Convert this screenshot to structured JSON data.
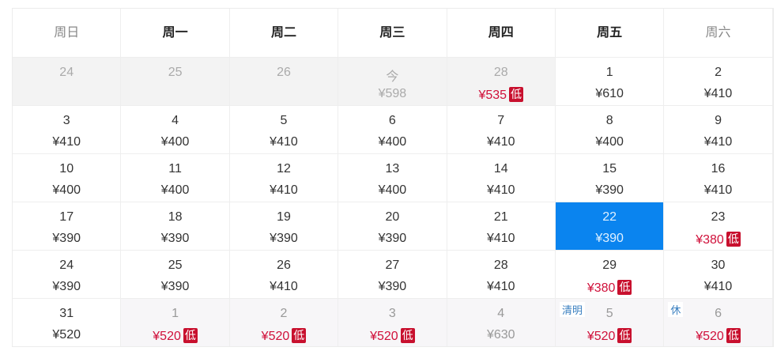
{
  "weekdays": [
    {
      "label": "周日",
      "weekend": true
    },
    {
      "label": "周一"
    },
    {
      "label": "周二"
    },
    {
      "label": "周三"
    },
    {
      "label": "周四"
    },
    {
      "label": "周五"
    },
    {
      "label": "周六",
      "weekend": true
    }
  ],
  "low_badge": "低",
  "colors": {
    "selected": "#0a84ef",
    "low_price": "#d0103a",
    "badge": "#c8102e",
    "holiday_tag": "#3a7fc0"
  },
  "weeks": [
    [
      {
        "day": "24",
        "state": "past"
      },
      {
        "day": "25",
        "state": "past"
      },
      {
        "day": "26",
        "state": "past"
      },
      {
        "day": "今",
        "price": "¥598",
        "state": "past"
      },
      {
        "day": "28",
        "price": "¥535",
        "low": true,
        "state": "past"
      },
      {
        "day": "1",
        "price": "¥610"
      },
      {
        "day": "2",
        "price": "¥410"
      }
    ],
    [
      {
        "day": "3",
        "price": "¥410"
      },
      {
        "day": "4",
        "price": "¥400"
      },
      {
        "day": "5",
        "price": "¥410"
      },
      {
        "day": "6",
        "price": "¥400"
      },
      {
        "day": "7",
        "price": "¥410"
      },
      {
        "day": "8",
        "price": "¥400"
      },
      {
        "day": "9",
        "price": "¥410"
      }
    ],
    [
      {
        "day": "10",
        "price": "¥400"
      },
      {
        "day": "11",
        "price": "¥400"
      },
      {
        "day": "12",
        "price": "¥410"
      },
      {
        "day": "13",
        "price": "¥400"
      },
      {
        "day": "14",
        "price": "¥410"
      },
      {
        "day": "15",
        "price": "¥390"
      },
      {
        "day": "16",
        "price": "¥410"
      }
    ],
    [
      {
        "day": "17",
        "price": "¥390"
      },
      {
        "day": "18",
        "price": "¥390"
      },
      {
        "day": "19",
        "price": "¥390"
      },
      {
        "day": "20",
        "price": "¥390"
      },
      {
        "day": "21",
        "price": "¥410"
      },
      {
        "day": "22",
        "price": "¥390",
        "state": "sel"
      },
      {
        "day": "23",
        "price": "¥380",
        "low": true
      }
    ],
    [
      {
        "day": "24",
        "price": "¥390"
      },
      {
        "day": "25",
        "price": "¥390"
      },
      {
        "day": "26",
        "price": "¥410"
      },
      {
        "day": "27",
        "price": "¥390"
      },
      {
        "day": "28",
        "price": "¥410"
      },
      {
        "day": "29",
        "price": "¥380",
        "low": true
      },
      {
        "day": "30",
        "price": "¥410"
      }
    ],
    [
      {
        "day": "31",
        "price": "¥520"
      },
      {
        "day": "1",
        "price": "¥520",
        "low": true,
        "state": "next"
      },
      {
        "day": "2",
        "price": "¥520",
        "low": true,
        "state": "next"
      },
      {
        "day": "3",
        "price": "¥520",
        "low": true,
        "state": "next"
      },
      {
        "day": "4",
        "price": "¥630",
        "state": "next"
      },
      {
        "day": "5",
        "price": "¥520",
        "low": true,
        "state": "next",
        "tag": "清明"
      },
      {
        "day": "6",
        "price": "¥520",
        "low": true,
        "state": "next",
        "tag": "休"
      }
    ]
  ]
}
